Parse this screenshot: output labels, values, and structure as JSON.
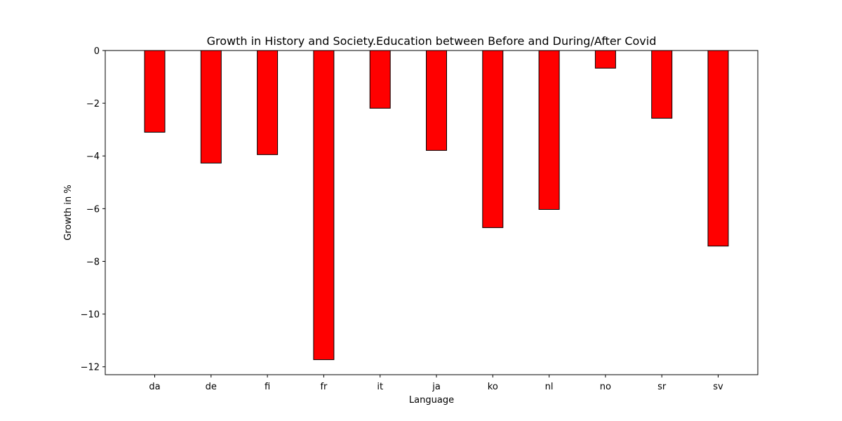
{
  "chart_data": {
    "type": "bar",
    "title": "Growth in History and Society.Education between Before and During/After Covid",
    "xlabel": "Language",
    "ylabel": "Growth in %",
    "categories": [
      "da",
      "de",
      "fi",
      "fr",
      "it",
      "ja",
      "ko",
      "nl",
      "no",
      "sr",
      "sv"
    ],
    "values": [
      -3.1,
      -4.27,
      -3.95,
      -11.73,
      -2.19,
      -3.79,
      -6.72,
      -6.03,
      -0.67,
      -2.57,
      -7.42
    ],
    "ylim": [
      -12.3,
      0
    ],
    "yticks": [
      0,
      -2,
      -4,
      -6,
      -8,
      -10,
      -12
    ],
    "ytick_labels": [
      "0",
      "−2",
      "−4",
      "−6",
      "−8",
      "−10",
      "−12"
    ],
    "grid": false,
    "bar_color": "#ff0000",
    "edge_color": "#000000"
  }
}
